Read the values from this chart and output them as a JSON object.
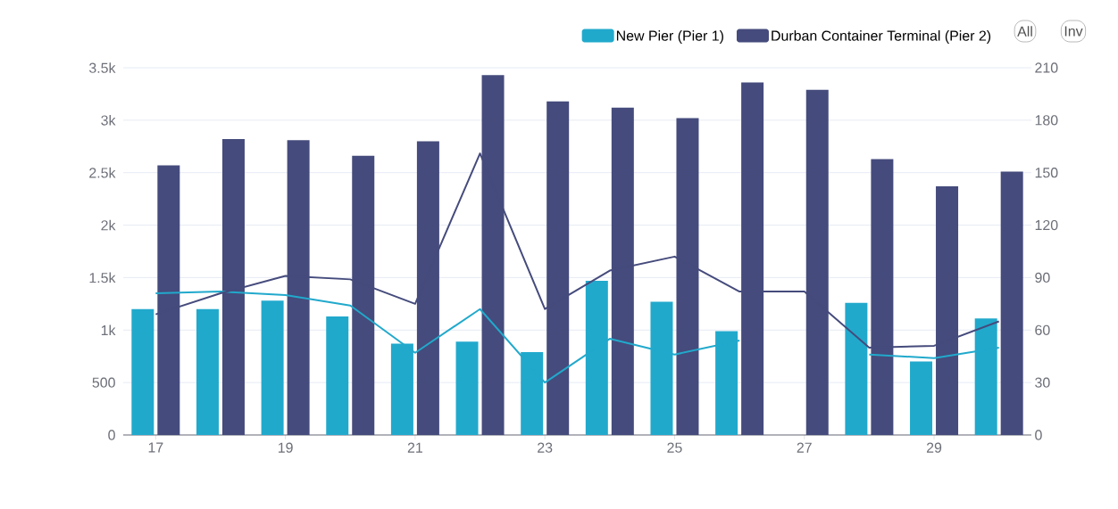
{
  "chart_data": {
    "type": "bar",
    "categories": [
      "17",
      null,
      "19",
      null,
      "21",
      null,
      "23",
      null,
      "25",
      null,
      "27",
      null,
      "29",
      null
    ],
    "series": [
      {
        "name": "New Pier (Pier 1)",
        "color": "#21a9cc",
        "values": [
          1200,
          1200,
          1280,
          1130,
          870,
          890,
          790,
          1470,
          1270,
          990,
          null,
          1260,
          700,
          1110
        ]
      },
      {
        "name": "Durban Container Terminal (Pier 2)",
        "color": "#454b7c",
        "values": [
          2570,
          2820,
          2810,
          2660,
          2800,
          3430,
          3180,
          3120,
          3020,
          3360,
          3290,
          2630,
          2370,
          2510
        ]
      },
      {
        "type": "line",
        "axis": "y2",
        "color": "#21a9cc",
        "values": [
          81,
          82,
          80,
          74,
          47,
          72,
          30,
          55,
          46,
          54,
          null,
          46,
          44,
          50
        ]
      },
      {
        "type": "line",
        "axis": "y2",
        "color": "#454b7c",
        "values": [
          69,
          81,
          91,
          89,
          75,
          161,
          72,
          94,
          102,
          82,
          82,
          50,
          51,
          65
        ]
      }
    ],
    "ylim": [
      0,
      3500
    ],
    "yticks": [
      0,
      500,
      {
        "value": 1000,
        "label": "1k"
      },
      {
        "value": 1500,
        "label": "1.5k"
      },
      {
        "value": 2000,
        "label": "2k"
      },
      {
        "value": 2500,
        "label": "2.5k"
      },
      {
        "value": 3000,
        "label": "3k"
      },
      {
        "value": 3500,
        "label": "3.5k"
      }
    ],
    "y2lim": [
      0,
      210
    ],
    "y2ticks": [
      0,
      30,
      60,
      90,
      120,
      150,
      180,
      210
    ],
    "grid": "y",
    "legend": "top right",
    "marker": "none",
    "annotations": [
      "All",
      "Inv"
    ]
  }
}
